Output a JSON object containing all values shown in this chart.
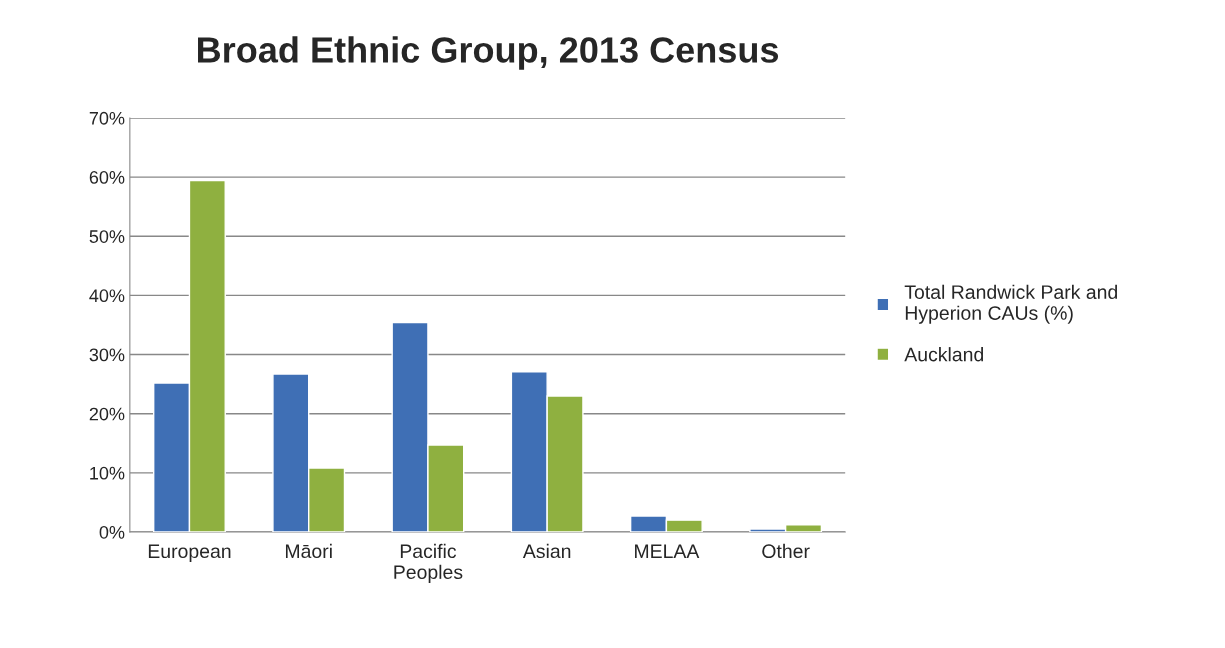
{
  "chart_data": {
    "type": "bar",
    "title": "Broad Ethnic Group, 2013 Census",
    "categories": [
      "European",
      "Māori",
      "Pacific\nPeoples",
      "Asian",
      "MELAA",
      "Other"
    ],
    "series": [
      {
        "name": "Total Randwick Park and\nHyperion CAUs (%)",
        "color": "#3f6fb5",
        "values": [
          25.2,
          26.7,
          35.4,
          27.1,
          2.7,
          0.5
        ]
      },
      {
        "name": "Auckland",
        "color": "#8fb040",
        "values": [
          59.4,
          10.8,
          14.7,
          23.0,
          2.0,
          1.2
        ]
      }
    ],
    "ylim": [
      0,
      70
    ],
    "yticks": [
      {
        "value": 0,
        "label": "0%"
      },
      {
        "value": 10,
        "label": "10%"
      },
      {
        "value": 20,
        "label": "20%"
      },
      {
        "value": 30,
        "label": "30%"
      },
      {
        "value": 40,
        "label": "40%"
      },
      {
        "value": 50,
        "label": "50%"
      },
      {
        "value": 60,
        "label": "60%"
      },
      {
        "value": 70,
        "label": "70%"
      }
    ],
    "grid": "y",
    "legend": "right"
  }
}
